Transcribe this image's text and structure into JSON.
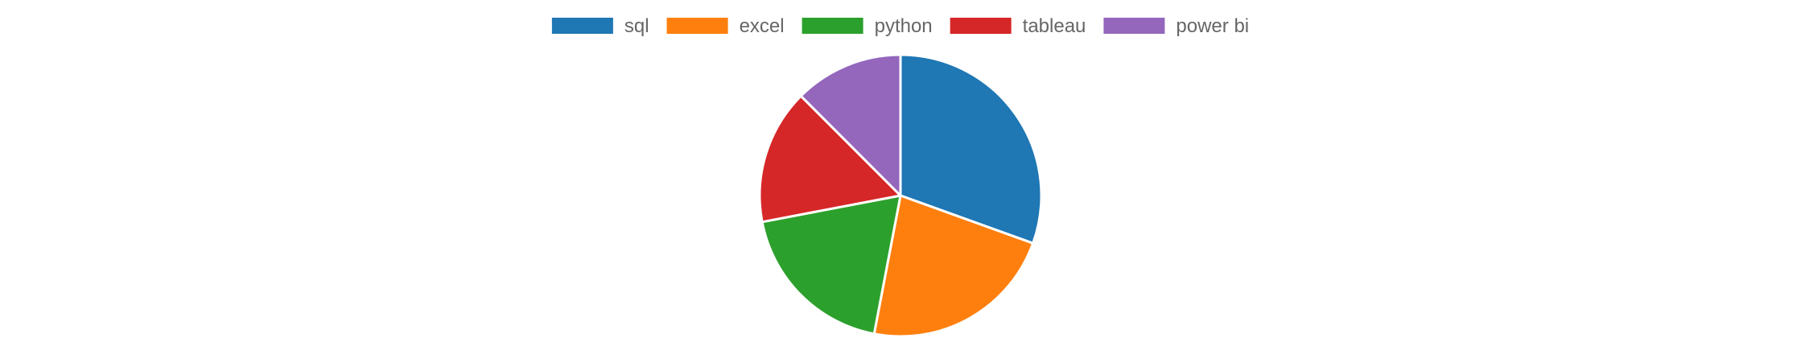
{
  "chart_data": {
    "type": "pie",
    "categories": [
      "sql",
      "excel",
      "python",
      "tableau",
      "power bi"
    ],
    "values": [
      30.5,
      22.5,
      19.0,
      15.5,
      12.5
    ],
    "colors": [
      "#1f77b4",
      "#ff7f0e",
      "#2ca02c",
      "#d62728",
      "#9467bd"
    ],
    "legend_position": "top",
    "start_angle_deg": 0,
    "direction": "clockwise",
    "slice_border_color": "#ffffff"
  }
}
